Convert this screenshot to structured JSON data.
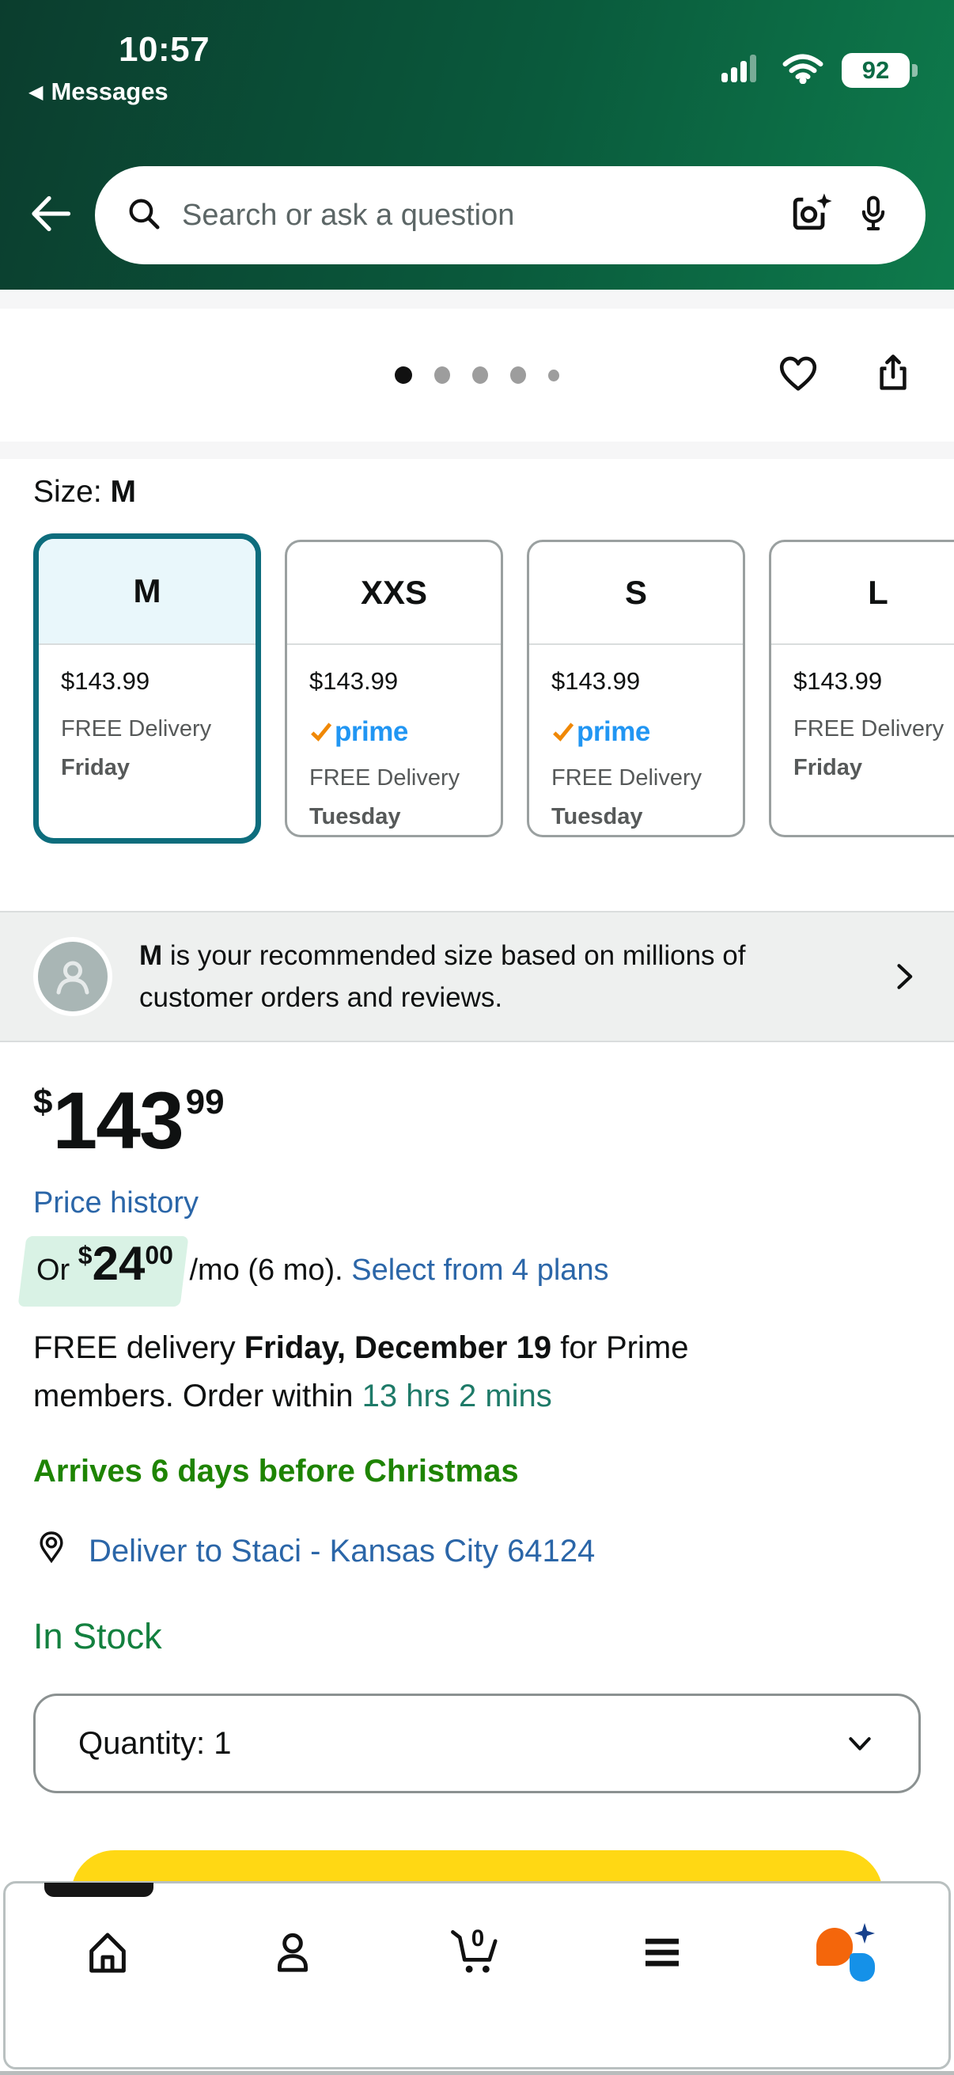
{
  "status_bar": {
    "time": "10:57",
    "back_app_label": "Messages",
    "battery_percent": "92"
  },
  "search": {
    "placeholder": "Search or ask a question"
  },
  "gallery": {
    "page_count": 5,
    "active_page": 1
  },
  "size_section": {
    "label_prefix": "Size:",
    "selected_size": "M",
    "prime_label": "prime",
    "options": [
      {
        "size": "M",
        "price": "$143.99",
        "prime": false,
        "delivery_line": "FREE Delivery",
        "delivery_day": "Friday",
        "selected": true
      },
      {
        "size": "XXS",
        "price": "$143.99",
        "prime": true,
        "delivery_line": "FREE Delivery",
        "delivery_day": "Tuesday",
        "selected": false
      },
      {
        "size": "S",
        "price": "$143.99",
        "prime": true,
        "delivery_line": "FREE Delivery",
        "delivery_day": "Tuesday",
        "selected": false
      },
      {
        "size": "L",
        "price": "$143.99",
        "prime": false,
        "delivery_line": "FREE Delivery",
        "delivery_day": "Friday",
        "selected": false
      }
    ]
  },
  "recommendation": {
    "size_bold": "M",
    "text": " is your recommended size based on millions of customer orders and reviews."
  },
  "buybox": {
    "price_symbol": "$",
    "price_whole": "143",
    "price_fraction": "99",
    "price_history_link": "Price history",
    "installment_prefix": "Or ",
    "installment_symbol": "$",
    "installment_amount": "24",
    "installment_cents": "00",
    "installment_suffix": " /mo (6 mo). ",
    "installment_link": "Select from 4 plans",
    "delivery_prefix": "FREE delivery ",
    "delivery_date": "Friday, December 19",
    "delivery_mid": " for Prime members. Order within ",
    "delivery_countdown": "13 hrs 2 mins",
    "arrives_text": "Arrives 6 days before Christmas",
    "deliver_to": "Deliver to Staci - Kansas City 64124",
    "stock_status": "In Stock",
    "quantity_label": "Quantity: 1"
  },
  "bottom_nav": {
    "cart_count": "0"
  },
  "colors": {
    "header-a": "#0b3d2e",
    "header-b": "#0e7b4c",
    "link": "#2b66a8",
    "teal": "#1e7a68",
    "green": "#1e8402",
    "instock": "#13803f",
    "mint": "#d9f2e5",
    "prime-blue": "#2196f3",
    "prime-orange": "#f08804",
    "select-teal": "#0d6d7d",
    "select-bg": "#e9f7fb",
    "card-border": "#9aa0a0",
    "yellow": "#ffd814",
    "muted": "#565959",
    "rufus-orange": "#f4660b",
    "rufus-blue": "#1591e8",
    "rufus-navy": "#17418c"
  }
}
